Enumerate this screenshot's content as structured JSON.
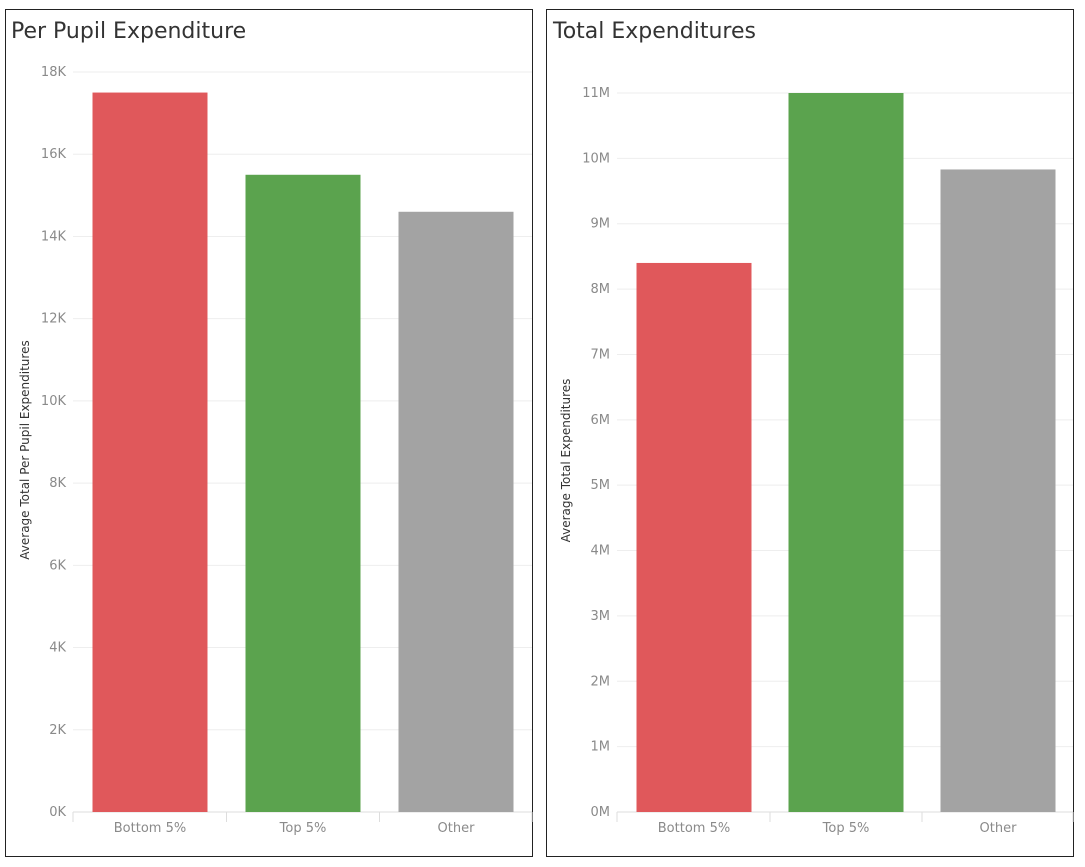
{
  "colors": {
    "bottom": "#e0585b",
    "top": "#5ba34e",
    "other": "#a3a3a3"
  },
  "chart_data": [
    {
      "type": "bar",
      "title": "Per Pupil Expenditure",
      "xlabel": "",
      "ylabel": "Average Total Per Pupil Expenditures",
      "categories": [
        "Bottom 5%",
        "Top 5%",
        "Other"
      ],
      "values": [
        17500,
        15500,
        14600
      ],
      "ylim": [
        0,
        18000
      ],
      "yticks": [
        0,
        2000,
        4000,
        6000,
        8000,
        10000,
        12000,
        14000,
        16000,
        18000
      ],
      "ytick_labels": [
        "0K",
        "2K",
        "4K",
        "6K",
        "8K",
        "10K",
        "12K",
        "14K",
        "16K",
        "18K"
      ],
      "grid": true
    },
    {
      "type": "bar",
      "title": "Total Expenditures",
      "xlabel": "",
      "ylabel": "Average Total Expenditures",
      "categories": [
        "Bottom 5%",
        "Top 5%",
        "Other"
      ],
      "values": [
        8400000,
        11000000,
        9830000
      ],
      "ylim": [
        0,
        11000000
      ],
      "yticks": [
        0,
        1000000,
        2000000,
        3000000,
        4000000,
        5000000,
        6000000,
        7000000,
        8000000,
        9000000,
        10000000,
        11000000
      ],
      "ytick_labels": [
        "0M",
        "1M",
        "2M",
        "3M",
        "4M",
        "5M",
        "6M",
        "7M",
        "8M",
        "9M",
        "10M",
        "11M"
      ],
      "grid": true
    }
  ]
}
